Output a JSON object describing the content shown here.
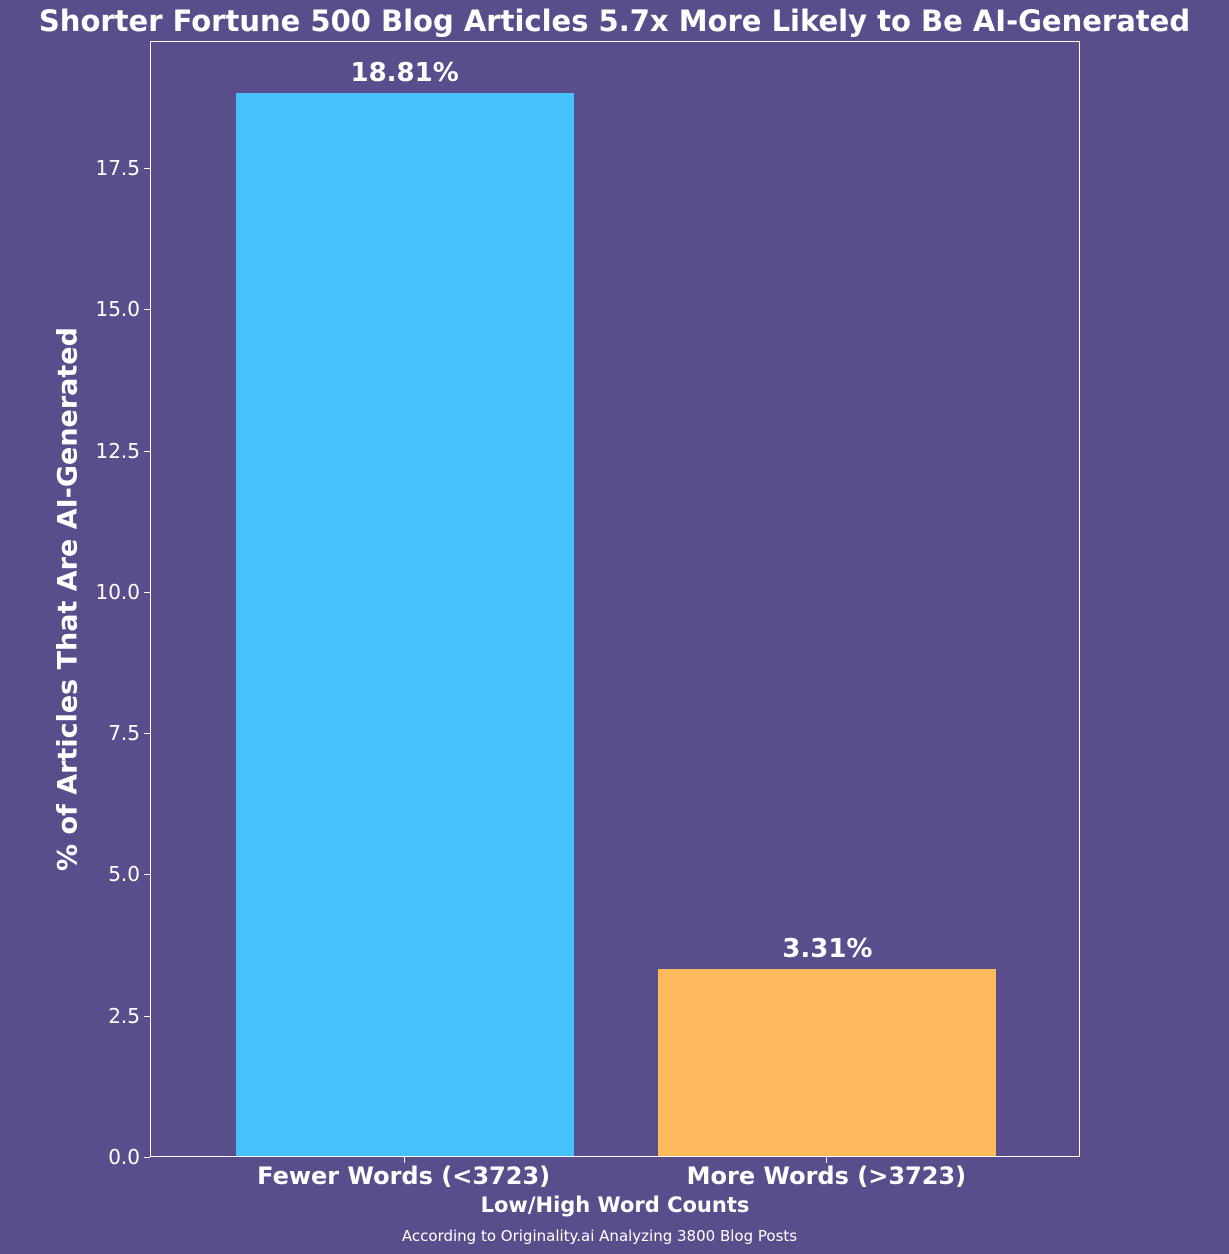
{
  "chart_data": {
    "type": "bar",
    "title": "Shorter Fortune 500 Blog Articles 5.7x More Likely to Be AI-Generated",
    "xlabel": "Low/High Word Counts",
    "ylabel": "% of Articles That Are AI-Generated",
    "caption": "According to Originality.ai Analyzing 3800 Blog Posts",
    "categories": [
      "Fewer Words (<3723)",
      "More Words (>3723)"
    ],
    "values": [
      18.81,
      3.31
    ],
    "value_labels": [
      "18.81%",
      "3.31%"
    ],
    "colors": [
      "#45C1FC",
      "#FFBA5C"
    ],
    "ylim": [
      0,
      19.75
    ],
    "yticks": [
      "0.0",
      "2.5",
      "5.0",
      "7.5",
      "10.0",
      "12.5",
      "15.0",
      "17.5"
    ],
    "grid": false,
    "legend": null
  },
  "style": {
    "background": "#5A4D8C",
    "text_color": "#FFFFFF"
  }
}
